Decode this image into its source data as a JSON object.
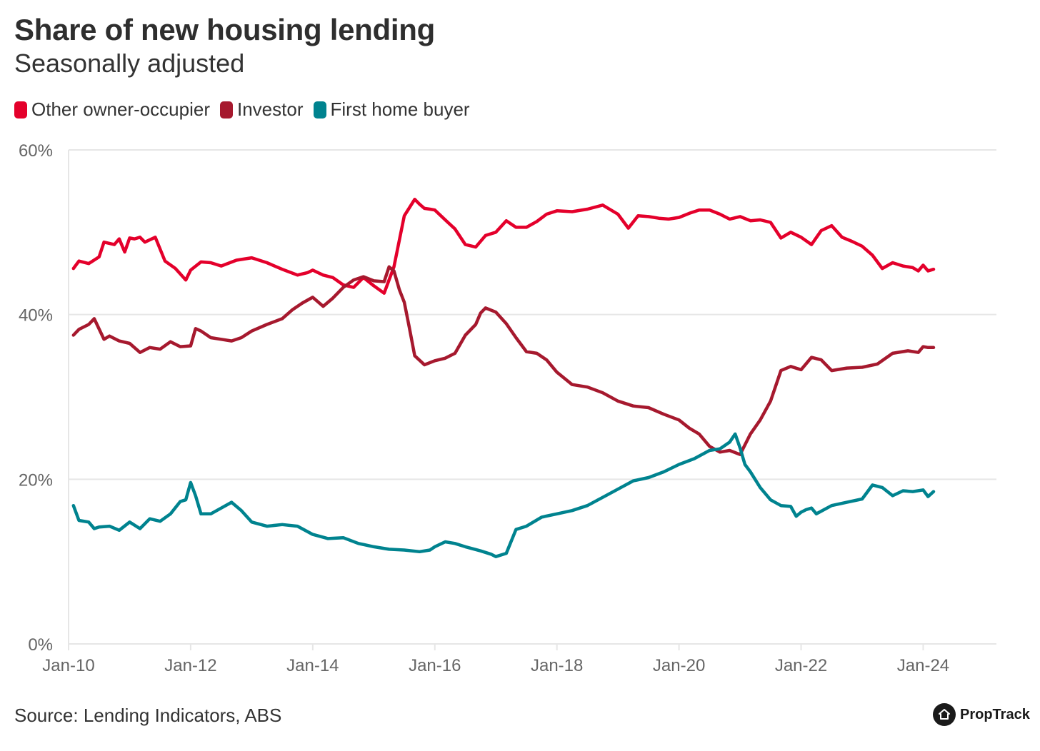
{
  "header": {
    "title": "Share of new housing lending",
    "subtitle": "Seasonally adjusted"
  },
  "footer": {
    "source": "Source: Lending Indicators, ABS",
    "brand": "PropTrack"
  },
  "colors": {
    "other_owner_occupier": "#e4002b",
    "investor": "#a6192e",
    "first_home_buyer": "#00838f",
    "grid": "#e6e6e6",
    "axis_text": "#666666"
  },
  "icons": {
    "brand_logo": "house-icon"
  },
  "chart_data": {
    "type": "line",
    "title": "Share of new housing lending",
    "subtitle": "Seasonally adjusted",
    "xlabel": "",
    "ylabel": "",
    "x_unit": "years since Jan-2010",
    "xlim": [
      0,
      15.2
    ],
    "ylim": [
      0,
      60
    ],
    "y_ticks": [
      0,
      20,
      40,
      60
    ],
    "y_tick_labels": [
      "0%",
      "20%",
      "40%",
      "60%"
    ],
    "x_ticks": [
      0,
      2,
      4,
      6,
      8,
      10,
      12,
      14
    ],
    "x_tick_labels": [
      "Jan-10",
      "Jan-12",
      "Jan-14",
      "Jan-16",
      "Jan-18",
      "Jan-20",
      "Jan-22",
      "Jan-24"
    ],
    "grid": true,
    "legend_position": "top-left",
    "series": [
      {
        "name": "Other owner-occupier",
        "color": "#e4002b",
        "x": [
          0.08,
          0.17,
          0.33,
          0.5,
          0.58,
          0.75,
          0.83,
          0.92,
          1.0,
          1.08,
          1.17,
          1.25,
          1.42,
          1.58,
          1.75,
          1.92,
          2.0,
          2.17,
          2.33,
          2.5,
          2.75,
          3.0,
          3.25,
          3.5,
          3.75,
          3.92,
          4.0,
          4.17,
          4.33,
          4.5,
          4.67,
          4.83,
          5.0,
          5.17,
          5.33,
          5.5,
          5.67,
          5.75,
          5.83,
          5.92,
          6.0,
          6.17,
          6.33,
          6.5,
          6.67,
          6.83,
          7.0,
          7.17,
          7.33,
          7.5,
          7.67,
          7.83,
          8.0,
          8.25,
          8.5,
          8.75,
          9.0,
          9.17,
          9.33,
          9.5,
          9.67,
          9.83,
          10.0,
          10.17,
          10.33,
          10.5,
          10.67,
          10.83,
          11.0,
          11.17,
          11.33,
          11.5,
          11.67,
          11.83,
          12.0,
          12.17,
          12.33,
          12.5,
          12.67,
          12.83,
          13.0,
          13.17,
          13.33,
          13.5,
          13.67,
          13.83,
          13.92,
          14.0,
          14.08,
          14.17
        ],
        "values": [
          45.6,
          46.5,
          46.2,
          47.0,
          48.8,
          48.5,
          49.2,
          47.6,
          49.3,
          49.2,
          49.4,
          48.8,
          49.4,
          46.5,
          45.6,
          44.2,
          45.4,
          46.4,
          46.3,
          45.9,
          46.6,
          46.9,
          46.3,
          45.5,
          44.8,
          45.1,
          45.4,
          44.8,
          44.5,
          43.6,
          43.3,
          44.5,
          43.5,
          42.6,
          45.8,
          52.0,
          54.0,
          53.4,
          52.9,
          52.8,
          52.7,
          51.5,
          50.4,
          48.5,
          48.2,
          49.6,
          50.0,
          51.4,
          50.6,
          50.6,
          51.3,
          52.2,
          52.6,
          52.5,
          52.8,
          53.3,
          52.2,
          50.5,
          52.0,
          51.9,
          51.7,
          51.6,
          51.8,
          52.3,
          52.7,
          52.7,
          52.2,
          51.6,
          51.9,
          51.4,
          51.5,
          51.2,
          49.3,
          50.0,
          49.4,
          48.5,
          50.2,
          50.8,
          49.4,
          48.9,
          48.3,
          47.2,
          45.6,
          46.3,
          45.9,
          45.7,
          45.3,
          46.0,
          45.3,
          45.5
        ]
      },
      {
        "name": "Investor",
        "color": "#a6192e",
        "x": [
          0.08,
          0.17,
          0.33,
          0.42,
          0.58,
          0.67,
          0.83,
          1.0,
          1.17,
          1.33,
          1.5,
          1.67,
          1.83,
          2.0,
          2.08,
          2.17,
          2.33,
          2.5,
          2.67,
          2.83,
          3.0,
          3.25,
          3.5,
          3.67,
          3.83,
          4.0,
          4.17,
          4.33,
          4.5,
          4.67,
          4.83,
          5.0,
          5.17,
          5.25,
          5.33,
          5.42,
          5.5,
          5.58,
          5.67,
          5.83,
          6.0,
          6.17,
          6.33,
          6.5,
          6.67,
          6.75,
          6.83,
          7.0,
          7.17,
          7.33,
          7.5,
          7.67,
          7.83,
          8.0,
          8.25,
          8.5,
          8.75,
          9.0,
          9.25,
          9.5,
          9.75,
          10.0,
          10.17,
          10.33,
          10.5,
          10.67,
          10.83,
          11.0,
          11.17,
          11.33,
          11.5,
          11.67,
          11.83,
          12.0,
          12.17,
          12.33,
          12.5,
          12.75,
          13.0,
          13.25,
          13.5,
          13.75,
          13.92,
          14.0,
          14.08,
          14.17
        ],
        "values": [
          37.5,
          38.2,
          38.8,
          39.5,
          37.0,
          37.4,
          36.8,
          36.5,
          35.4,
          36.0,
          35.8,
          36.7,
          36.1,
          36.2,
          38.3,
          38.0,
          37.2,
          37.0,
          36.8,
          37.2,
          38.0,
          38.8,
          39.5,
          40.6,
          41.4,
          42.1,
          41.0,
          42.0,
          43.3,
          44.2,
          44.6,
          44.1,
          44.0,
          45.8,
          45.3,
          43.0,
          41.5,
          38.5,
          35.0,
          33.9,
          34.4,
          34.7,
          35.3,
          37.5,
          38.8,
          40.2,
          40.8,
          40.3,
          38.9,
          37.2,
          35.5,
          35.3,
          34.5,
          33.0,
          31.5,
          31.2,
          30.5,
          29.5,
          28.9,
          28.7,
          27.9,
          27.2,
          26.2,
          25.5,
          24.0,
          23.3,
          23.5,
          23.0,
          25.5,
          27.2,
          29.5,
          33.2,
          33.7,
          33.3,
          34.8,
          34.5,
          33.2,
          33.5,
          33.6,
          34.0,
          35.3,
          35.6,
          35.4,
          36.1,
          36.0,
          36.0
        ]
      },
      {
        "name": "First home buyer",
        "color": "#00838f",
        "x": [
          0.08,
          0.17,
          0.33,
          0.42,
          0.5,
          0.67,
          0.83,
          1.0,
          1.17,
          1.33,
          1.5,
          1.67,
          1.83,
          1.92,
          2.0,
          2.08,
          2.17,
          2.33,
          2.5,
          2.67,
          2.83,
          3.0,
          3.25,
          3.5,
          3.75,
          4.0,
          4.25,
          4.5,
          4.75,
          5.0,
          5.25,
          5.5,
          5.75,
          5.92,
          6.0,
          6.17,
          6.33,
          6.5,
          6.75,
          6.92,
          7.0,
          7.17,
          7.33,
          7.5,
          7.75,
          8.0,
          8.25,
          8.5,
          8.75,
          9.0,
          9.25,
          9.5,
          9.75,
          10.0,
          10.25,
          10.5,
          10.67,
          10.83,
          10.92,
          11.0,
          11.08,
          11.17,
          11.33,
          11.5,
          11.67,
          11.83,
          11.92,
          12.0,
          12.08,
          12.17,
          12.25,
          12.5,
          12.75,
          13.0,
          13.17,
          13.33,
          13.5,
          13.67,
          13.83,
          14.0,
          14.08,
          14.17
        ],
        "values": [
          16.8,
          15.0,
          14.8,
          14.0,
          14.2,
          14.3,
          13.8,
          14.8,
          14.0,
          15.2,
          14.9,
          15.8,
          17.3,
          17.5,
          19.6,
          18.0,
          15.8,
          15.8,
          16.5,
          17.2,
          16.2,
          14.8,
          14.3,
          14.5,
          14.3,
          13.3,
          12.8,
          12.9,
          12.2,
          11.8,
          11.5,
          11.4,
          11.2,
          11.4,
          11.8,
          12.4,
          12.2,
          11.8,
          11.3,
          10.9,
          10.6,
          11.0,
          13.9,
          14.3,
          15.4,
          15.8,
          16.2,
          16.8,
          17.8,
          18.8,
          19.8,
          20.2,
          20.9,
          21.8,
          22.5,
          23.5,
          23.7,
          24.5,
          25.5,
          23.8,
          21.8,
          20.9,
          19.0,
          17.5,
          16.8,
          16.7,
          15.5,
          16.0,
          16.3,
          16.5,
          15.8,
          16.8,
          17.2,
          17.6,
          19.3,
          19.0,
          18.0,
          18.6,
          18.5,
          18.7,
          17.9,
          18.5
        ]
      }
    ]
  }
}
